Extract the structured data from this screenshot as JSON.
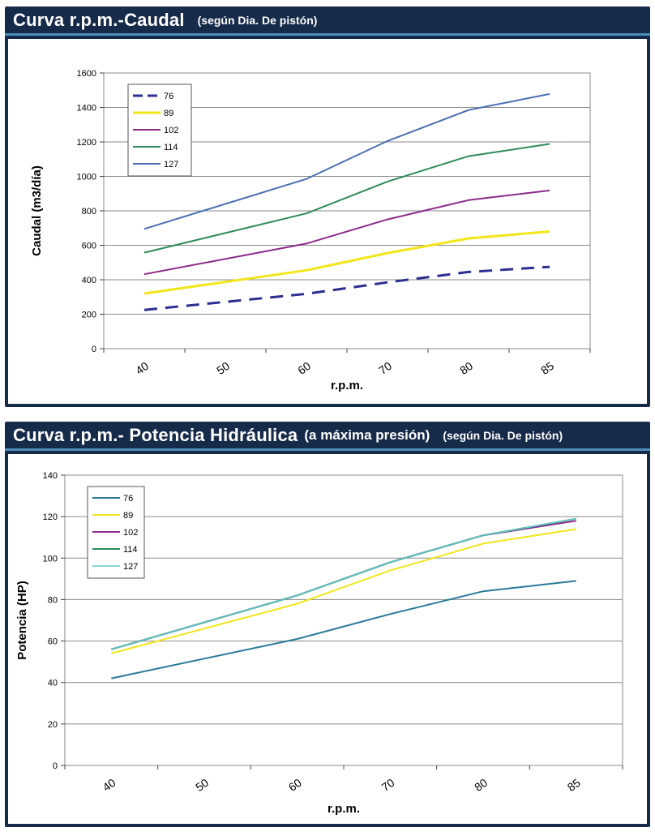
{
  "chart_data": [
    {
      "type": "line",
      "title": "Curva r.p.m.-Caudal",
      "subtitle": "(según Dia. De pistón)",
      "xlabel": "r.p.m.",
      "ylabel": "Caudal (m3/día)",
      "categories": [
        "40",
        "50",
        "60",
        "70",
        "80",
        "85"
      ],
      "ylim": [
        0,
        1600
      ],
      "yticks": [
        0,
        200,
        400,
        600,
        800,
        1000,
        1200,
        1400,
        1600
      ],
      "grid": true,
      "legend_position": "top-left",
      "series": [
        {
          "name": "76",
          "color": "#2b2f8f",
          "dash": true,
          "values": [
            225,
            null,
            318,
            385,
            445,
            475
          ]
        },
        {
          "name": "89",
          "color": "#f2e61a",
          "values": [
            320,
            null,
            455,
            555,
            640,
            680
          ]
        },
        {
          "name": "102",
          "color": "#8a2a8a",
          "values": [
            432,
            null,
            610,
            750,
            862,
            918
          ]
        },
        {
          "name": "114",
          "color": "#2e8b5a",
          "values": [
            557,
            null,
            785,
            970,
            1117,
            1188
          ]
        },
        {
          "name": "127",
          "color": "#4a6fb0",
          "values": [
            695,
            null,
            985,
            1205,
            1385,
            1478
          ]
        }
      ]
    },
    {
      "type": "line",
      "title": "Curva r.p.m.- Potencia Hidráulica",
      "subtitle": "(a máxima presión)",
      "note": "(según Dia. De pistón)",
      "xlabel": "r.p.m.",
      "ylabel": "Potencia (HP)",
      "categories": [
        "40",
        "50",
        "60",
        "70",
        "80",
        "85"
      ],
      "ylim": [
        0,
        140
      ],
      "yticks": [
        0,
        20,
        40,
        60,
        80,
        100,
        120,
        140
      ],
      "grid": true,
      "legend_position": "top-left",
      "series": [
        {
          "name": "76",
          "color": "#2a7a9a",
          "values": [
            42,
            null,
            61,
            73,
            84,
            89
          ]
        },
        {
          "name": "89",
          "color": "#f2e61a",
          "values": [
            54,
            null,
            78,
            94,
            107,
            114
          ]
        },
        {
          "name": "102",
          "color": "#8a2a8a",
          "values": [
            56,
            null,
            82,
            98,
            111,
            118
          ]
        },
        {
          "name": "114",
          "color": "#2e8b5a",
          "values": [
            56,
            null,
            82,
            98,
            111,
            119
          ]
        },
        {
          "name": "127",
          "color": "#5fc9d0",
          "values": [
            56,
            null,
            82,
            98,
            111,
            119
          ]
        }
      ]
    }
  ]
}
